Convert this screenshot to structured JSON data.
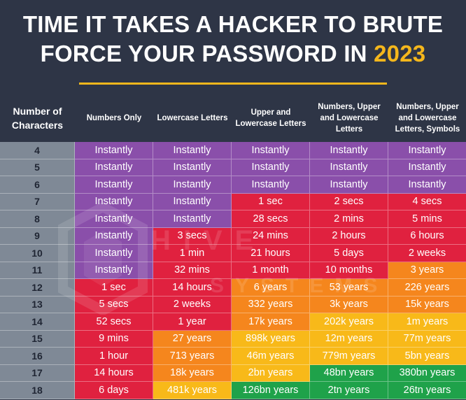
{
  "title_line1": "TIME IT TAKES A HACKER TO BRUTE",
  "title_line2_prefix": "FORCE YOUR PASSWORD IN ",
  "title_year": "2023",
  "headers": [
    "Number of Characters",
    "Numbers Only",
    "Lowercase Letters",
    "Upper and Lowercase Letters",
    "Numbers, Upper and Lowercase Letters",
    "Numbers, Upper and Lowercase Letters, Symbols"
  ],
  "watermark_brand": "HIVE",
  "watermark_sub": "SYSTEMS",
  "colors": {
    "instant": "#8a4faa",
    "red": "#e0213f",
    "orange": "#f5861d",
    "yellow": "#f8b919",
    "green": "#1fa24a",
    "accent": "#f5b71c",
    "background": "#2e3546"
  },
  "rows": [
    {
      "chars": "4",
      "values": [
        "Instantly",
        "Instantly",
        "Instantly",
        "Instantly",
        "Instantly"
      ],
      "levels": [
        "instant",
        "instant",
        "instant",
        "instant",
        "instant"
      ]
    },
    {
      "chars": "5",
      "values": [
        "Instantly",
        "Instantly",
        "Instantly",
        "Instantly",
        "Instantly"
      ],
      "levels": [
        "instant",
        "instant",
        "instant",
        "instant",
        "instant"
      ]
    },
    {
      "chars": "6",
      "values": [
        "Instantly",
        "Instantly",
        "Instantly",
        "Instantly",
        "Instantly"
      ],
      "levels": [
        "instant",
        "instant",
        "instant",
        "instant",
        "instant"
      ]
    },
    {
      "chars": "7",
      "values": [
        "Instantly",
        "Instantly",
        "1 sec",
        "2 secs",
        "4 secs"
      ],
      "levels": [
        "instant",
        "instant",
        "red",
        "red",
        "red"
      ]
    },
    {
      "chars": "8",
      "values": [
        "Instantly",
        "Instantly",
        "28 secs",
        "2 mins",
        "5 mins"
      ],
      "levels": [
        "instant",
        "instant",
        "red",
        "red",
        "red"
      ]
    },
    {
      "chars": "9",
      "values": [
        "Instantly",
        "3 secs",
        "24 mins",
        "2 hours",
        "6 hours"
      ],
      "levels": [
        "instant",
        "red",
        "red",
        "red",
        "red"
      ]
    },
    {
      "chars": "10",
      "values": [
        "Instantly",
        "1 min",
        "21 hours",
        "5 days",
        "2 weeks"
      ],
      "levels": [
        "instant",
        "red",
        "red",
        "red",
        "red"
      ]
    },
    {
      "chars": "11",
      "values": [
        "Instantly",
        "32 mins",
        "1 month",
        "10 months",
        "3 years"
      ],
      "levels": [
        "instant",
        "red",
        "red",
        "red",
        "orange"
      ]
    },
    {
      "chars": "12",
      "values": [
        "1 sec",
        "14 hours",
        "6 years",
        "53 years",
        "226 years"
      ],
      "levels": [
        "red",
        "red",
        "orange",
        "orange",
        "orange"
      ]
    },
    {
      "chars": "13",
      "values": [
        "5 secs",
        "2 weeks",
        "332 years",
        "3k years",
        "15k years"
      ],
      "levels": [
        "red",
        "red",
        "orange",
        "orange",
        "orange"
      ]
    },
    {
      "chars": "14",
      "values": [
        "52 secs",
        "1 year",
        "17k years",
        "202k years",
        "1m years"
      ],
      "levels": [
        "red",
        "red",
        "orange",
        "yellow",
        "yellow"
      ]
    },
    {
      "chars": "15",
      "values": [
        "9 mins",
        "27 years",
        "898k years",
        "12m years",
        "77m years"
      ],
      "levels": [
        "red",
        "orange",
        "yellow",
        "yellow",
        "yellow"
      ]
    },
    {
      "chars": "16",
      "values": [
        "1 hour",
        "713 years",
        "46m years",
        "779m years",
        "5bn years"
      ],
      "levels": [
        "red",
        "orange",
        "yellow",
        "yellow",
        "yellow"
      ]
    },
    {
      "chars": "17",
      "values": [
        "14 hours",
        "18k years",
        "2bn years",
        "48bn years",
        "380bn years"
      ],
      "levels": [
        "red",
        "orange",
        "yellow",
        "green",
        "green"
      ]
    },
    {
      "chars": "18",
      "values": [
        "6 days",
        "481k years",
        "126bn years",
        "2tn years",
        "26tn years"
      ],
      "levels": [
        "red",
        "yellow",
        "green",
        "green",
        "green"
      ]
    }
  ]
}
